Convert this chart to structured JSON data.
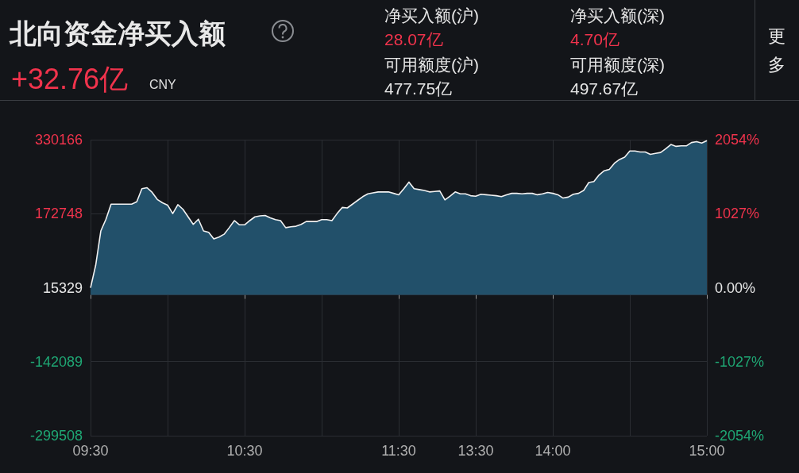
{
  "chart_data": {
    "type": "area",
    "title": "北向资金净买入额",
    "annotations": [
      "+32.76亿",
      "CNY",
      "净买入额(沪)",
      "28.07亿",
      "净买入额(深)",
      "4.70亿",
      "可用额度(沪)",
      "477.75亿",
      "可用额度(深)",
      "497.67亿",
      "更多"
    ],
    "categories": [
      "09:30",
      null,
      null,
      null,
      null,
      null,
      null,
      null,
      null,
      null,
      null,
      null,
      null,
      null,
      null,
      null,
      null,
      null,
      null,
      null,
      null,
      null,
      null,
      null,
      null,
      null,
      null,
      null,
      null,
      null,
      "10:30",
      null,
      null,
      null,
      null,
      null,
      null,
      null,
      null,
      null,
      null,
      null,
      null,
      null,
      null,
      null,
      null,
      null,
      null,
      null,
      null,
      null,
      null,
      null,
      null,
      null,
      null,
      null,
      null,
      null,
      "11:30",
      null,
      null,
      null,
      null,
      null,
      null,
      null,
      null,
      null,
      null,
      null,
      null,
      null,
      null,
      "13:30",
      null,
      null,
      null,
      null,
      null,
      null,
      null,
      null,
      null,
      null,
      null,
      null,
      null,
      null,
      "14:00",
      null,
      null,
      null,
      null,
      null,
      null,
      null,
      null,
      null,
      null,
      null,
      null,
      null,
      null,
      null,
      null,
      null,
      null,
      null,
      null,
      null,
      null,
      null,
      null,
      null,
      null,
      null,
      null,
      null,
      "15:00"
    ],
    "series": [
      {
        "color": "#22506a",
        "values": [
          15000,
          63000,
          136000,
          161000,
          193000,
          193000,
          193000,
          193000,
          193000,
          198000,
          226000,
          228000,
          218000,
          203000,
          196000,
          191000,
          173000,
          192000,
          182000,
          166000,
          150000,
          161000,
          136000,
          133000,
          119000,
          123000,
          129000,
          143000,
          158000,
          149000,
          149000,
          158000,
          166000,
          168000,
          169000,
          164000,
          160000,
          158000,
          143000,
          145000,
          146000,
          150000,
          156000,
          156000,
          156000,
          160000,
          160000,
          158000,
          173000,
          186000,
          185000,
          193000,
          201000,
          209000,
          215000,
          217000,
          219000,
          219000,
          219000,
          216000,
          213000,
          226000,
          240000,
          226000,
          224000,
          222000,
          219000,
          220000,
          221000,
          202000,
          210000,
          219000,
          215000,
          215000,
          211000,
          210000,
          214000,
          213000,
          212000,
          211000,
          209000,
          213000,
          216000,
          216000,
          215000,
          216000,
          216000,
          213000,
          215000,
          218000,
          216000,
          213000,
          206000,
          208000,
          214000,
          216000,
          222000,
          239000,
          241000,
          255000,
          264000,
          267000,
          280000,
          288000,
          293000,
          306000,
          306000,
          304000,
          304000,
          299000,
          301000,
          303000,
          311000,
          320000,
          316000,
          317000,
          317000,
          324000,
          326000,
          323000,
          328000
        ]
      }
    ],
    "ylim": [
      -299508,
      330166
    ],
    "yticks": [
      -299508,
      -142089,
      15329,
      172748,
      330166
    ],
    "y2lim": [
      -2054,
      2054
    ],
    "y2ticks": [
      {
        "value": -2054,
        "label": "-2054%"
      },
      {
        "value": -1027,
        "label": "-1027%"
      },
      {
        "value": 0,
        "label": "0.00%"
      },
      {
        "value": 1027,
        "label": "1027%"
      },
      {
        "value": 2054,
        "label": "2054%"
      }
    ],
    "grid": true,
    "marker": "none",
    "line_style": "solid"
  }
}
